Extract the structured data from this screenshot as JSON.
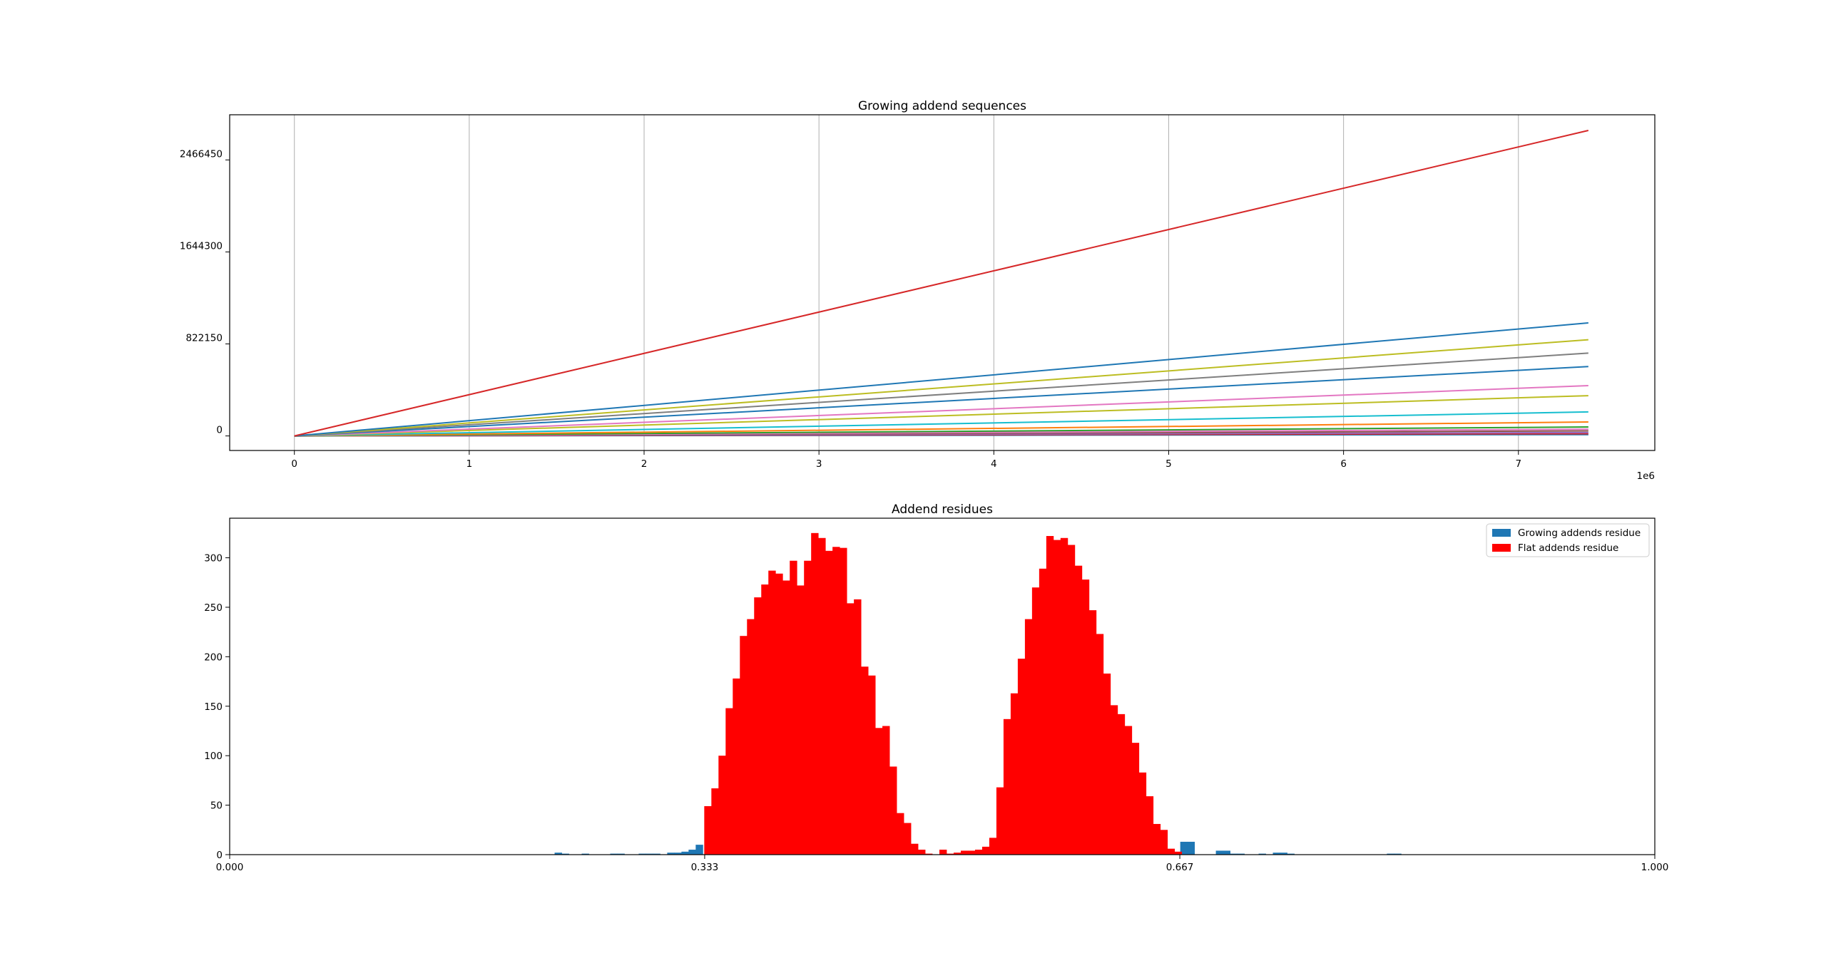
{
  "chart_data": [
    {
      "type": "line",
      "title": "Growing addend sequences",
      "xlabel": "",
      "ylabel": "",
      "x_offset_label": "1e6",
      "x_tick_labels": [
        "0",
        "1",
        "2",
        "3",
        "4",
        "5",
        "6",
        "7"
      ],
      "x_tick_values": [
        0,
        1,
        2,
        3,
        4,
        5,
        6,
        7
      ],
      "y_tick_labels": [
        "0",
        "822150",
        "1644300",
        "2466450"
      ],
      "y_tick_values": [
        0,
        822150,
        1644300,
        2466450
      ],
      "xlim": [
        -0.37,
        7.78
      ],
      "ylim": [
        -130000,
        2870000
      ],
      "grid": "x",
      "x_start": 0,
      "x_end": 7.4,
      "series": [
        {
          "color": "#d62728",
          "start": 0,
          "end": 2730000
        },
        {
          "color": "#1f77b4",
          "start": 0,
          "end": 1010000
        },
        {
          "color": "#bcbd22",
          "start": 0,
          "end": 860000
        },
        {
          "color": "#7f7f7f",
          "start": 0,
          "end": 740000
        },
        {
          "color": "#1f77b4",
          "start": 0,
          "end": 620000
        },
        {
          "color": "#e377c2",
          "start": 0,
          "end": 450000
        },
        {
          "color": "#bcbd22",
          "start": 0,
          "end": 360000
        },
        {
          "color": "#17becf",
          "start": 0,
          "end": 215000
        },
        {
          "color": "#ff7f0e",
          "start": 0,
          "end": 125000
        },
        {
          "color": "#2ca02c",
          "start": 0,
          "end": 80000
        },
        {
          "color": "#e377c2",
          "start": 0,
          "end": 60000
        },
        {
          "color": "#8c564b",
          "start": 0,
          "end": 45000
        },
        {
          "color": "#9467bd",
          "start": 0,
          "end": 30000
        },
        {
          "color": "#d62728",
          "start": 0,
          "end": 20000
        },
        {
          "color": "#1f77b4",
          "start": 0,
          "end": 12000
        }
      ]
    },
    {
      "type": "bar",
      "title": "Addend residues",
      "xlabel": "",
      "ylabel": "",
      "x_tick_labels": [
        "0.000",
        "0.333",
        "0.667",
        "1.000"
      ],
      "x_tick_values": [
        0,
        0.3333,
        0.6667,
        1.0
      ],
      "y_tick_labels": [
        "0",
        "50",
        "100",
        "150",
        "200",
        "250",
        "300"
      ],
      "y_tick_values": [
        0,
        50,
        100,
        150,
        200,
        250,
        300
      ],
      "xlim": [
        0,
        1
      ],
      "ylim": [
        0,
        340
      ],
      "legend_position": "top-right",
      "series": [
        {
          "name": "Growing addends residue",
          "color": "#1f77b4",
          "bin_width": 0.005,
          "bins": [
            [
              0.228,
              2
            ],
            [
              0.233,
              1
            ],
            [
              0.247,
              1
            ],
            [
              0.267,
              1
            ],
            [
              0.272,
              1
            ],
            [
              0.287,
              1
            ],
            [
              0.292,
              1
            ],
            [
              0.297,
              1
            ],
            [
              0.307,
              2
            ],
            [
              0.312,
              2
            ],
            [
              0.317,
              3
            ],
            [
              0.322,
              5
            ],
            [
              0.327,
              10
            ],
            [
              0.667,
              13
            ],
            [
              0.672,
              13
            ],
            [
              0.692,
              4
            ],
            [
              0.697,
              4
            ],
            [
              0.702,
              1
            ],
            [
              0.707,
              1
            ],
            [
              0.722,
              1
            ],
            [
              0.732,
              2
            ],
            [
              0.737,
              2
            ],
            [
              0.742,
              1
            ],
            [
              0.812,
              1
            ],
            [
              0.817,
              1
            ]
          ]
        },
        {
          "name": "Flat addends residue",
          "color": "#ff0000",
          "bin_width": 0.005,
          "bins": [
            [
              0.333,
              49
            ],
            [
              0.338,
              67
            ],
            [
              0.343,
              100
            ],
            [
              0.348,
              148
            ],
            [
              0.353,
              178
            ],
            [
              0.358,
              221
            ],
            [
              0.363,
              238
            ],
            [
              0.368,
              260
            ],
            [
              0.373,
              273
            ],
            [
              0.378,
              287
            ],
            [
              0.383,
              284
            ],
            [
              0.388,
              277
            ],
            [
              0.393,
              297
            ],
            [
              0.398,
              272
            ],
            [
              0.403,
              297
            ],
            [
              0.408,
              325
            ],
            [
              0.413,
              320
            ],
            [
              0.418,
              307
            ],
            [
              0.423,
              311
            ],
            [
              0.428,
              310
            ],
            [
              0.433,
              254
            ],
            [
              0.438,
              258
            ],
            [
              0.443,
              190
            ],
            [
              0.448,
              181
            ],
            [
              0.453,
              128
            ],
            [
              0.458,
              130
            ],
            [
              0.463,
              89
            ],
            [
              0.468,
              42
            ],
            [
              0.473,
              32
            ],
            [
              0.478,
              11
            ],
            [
              0.483,
              5
            ],
            [
              0.488,
              1
            ],
            [
              0.493,
              0
            ],
            [
              0.498,
              5
            ],
            [
              0.503,
              1
            ],
            [
              0.508,
              2
            ],
            [
              0.513,
              4
            ],
            [
              0.518,
              4
            ],
            [
              0.523,
              5
            ],
            [
              0.528,
              8
            ],
            [
              0.533,
              17
            ],
            [
              0.538,
              68
            ],
            [
              0.543,
              137
            ],
            [
              0.548,
              163
            ],
            [
              0.553,
              198
            ],
            [
              0.558,
              238
            ],
            [
              0.563,
              270
            ],
            [
              0.568,
              289
            ],
            [
              0.573,
              322
            ],
            [
              0.578,
              318
            ],
            [
              0.583,
              320
            ],
            [
              0.588,
              313
            ],
            [
              0.593,
              292
            ],
            [
              0.598,
              278
            ],
            [
              0.603,
              247
            ],
            [
              0.608,
              223
            ],
            [
              0.613,
              183
            ],
            [
              0.618,
              151
            ],
            [
              0.623,
              142
            ],
            [
              0.628,
              130
            ],
            [
              0.633,
              113
            ],
            [
              0.638,
              83
            ],
            [
              0.643,
              59
            ],
            [
              0.648,
              31
            ],
            [
              0.653,
              25
            ],
            [
              0.658,
              6
            ],
            [
              0.663,
              3
            ]
          ]
        }
      ]
    }
  ]
}
